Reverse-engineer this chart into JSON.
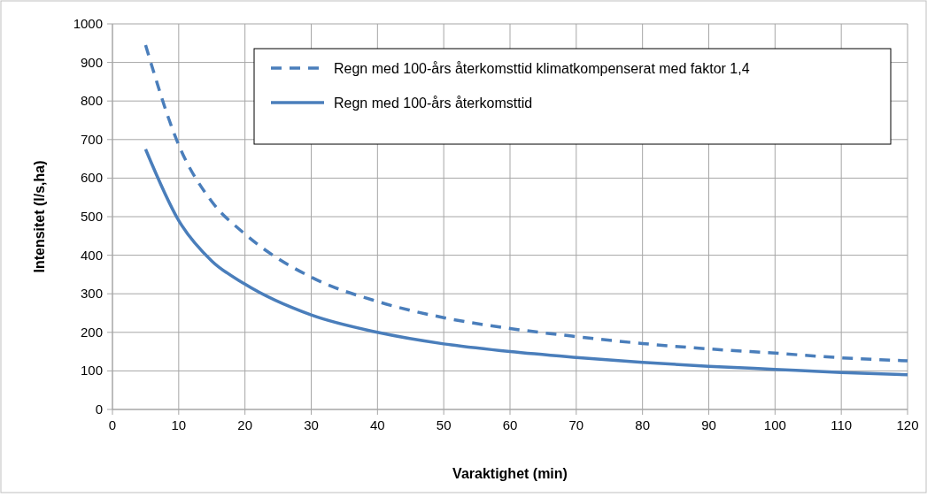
{
  "chart_data": {
    "type": "line",
    "xlabel": "Varaktighet (min)",
    "ylabel": "Intensitet (l/s,ha)",
    "x": [
      5,
      10,
      15,
      20,
      30,
      40,
      50,
      60,
      70,
      80,
      90,
      100,
      110,
      120
    ],
    "series": [
      {
        "name": "Regn med 100-års återkomsttid klimatkompenserat med faktor 1,4",
        "color": "#4a7ebb",
        "line_style": "dashed",
        "values": [
          945,
          686,
          539,
          455,
          343,
          280,
          238,
          210,
          189,
          171,
          157,
          146,
          134,
          126
        ]
      },
      {
        "name": "Regn med 100-års återkomsttid",
        "color": "#4a7ebb",
        "line_style": "solid",
        "values": [
          675,
          490,
          385,
          325,
          245,
          200,
          170,
          150,
          135,
          122,
          112,
          104,
          96,
          90
        ]
      }
    ],
    "xlim": [
      0,
      120
    ],
    "xticks": [
      0,
      10,
      20,
      30,
      40,
      50,
      60,
      70,
      80,
      90,
      100,
      110,
      120
    ],
    "ylim": [
      0,
      1000
    ],
    "yticks": [
      0,
      100,
      200,
      300,
      400,
      500,
      600,
      700,
      800,
      900,
      1000
    ],
    "grid": true,
    "legend": "top right",
    "marker": "none"
  }
}
